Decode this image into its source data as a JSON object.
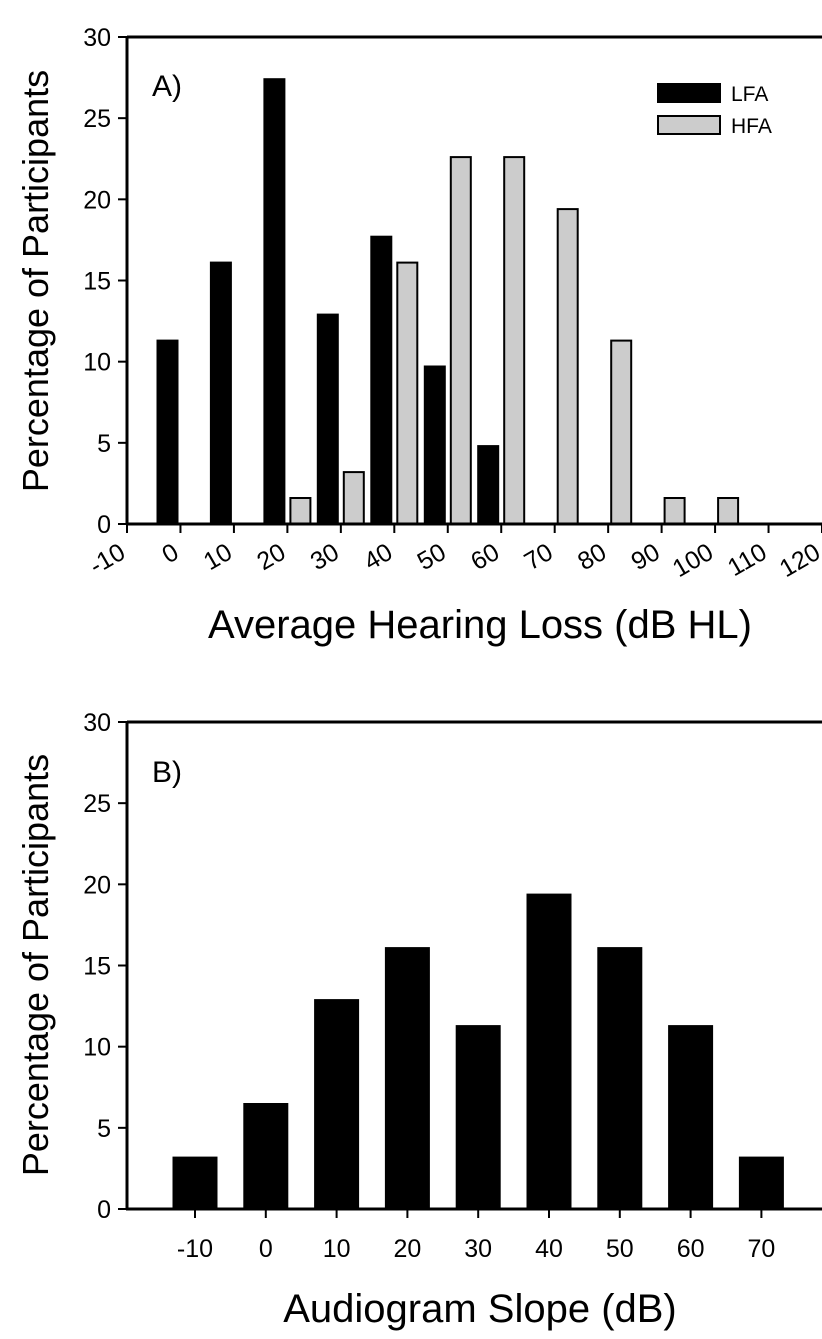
{
  "chart_data": [
    {
      "type": "bar",
      "panel_label": "A)",
      "xlabel": "Average Hearing Loss (dB HL)",
      "ylabel": "Percentage of Participants",
      "ylim": [
        0,
        30
      ],
      "yticks": [
        "0",
        "5",
        "10",
        "15",
        "20",
        "25",
        "30"
      ],
      "xlim": [
        -10,
        120
      ],
      "xticks": [
        "-10",
        "0",
        "10",
        "20",
        "30",
        "40",
        "50",
        "60",
        "70",
        "80",
        "90",
        "100",
        "110",
        "120"
      ],
      "x_tick_rotation": "angled",
      "bin_width": 10,
      "legend_position": "top-right",
      "grid": false,
      "series": [
        {
          "name": "LFA",
          "color": "#000000",
          "x": [
            0,
            10,
            20,
            30,
            40,
            50,
            60
          ],
          "values": [
            11.3,
            16.1,
            27.4,
            12.9,
            17.7,
            9.7,
            4.8
          ]
        },
        {
          "name": "HFA",
          "color": "#cccccc",
          "x": [
            20,
            30,
            40,
            50,
            60,
            70,
            80,
            90,
            100
          ],
          "values": [
            1.6,
            3.2,
            16.1,
            22.6,
            22.6,
            19.4,
            11.3,
            1.6,
            1.6
          ]
        }
      ]
    },
    {
      "type": "bar",
      "panel_label": "B)",
      "xlabel": "Audiogram Slope (dB)",
      "ylabel": "Percentage of Participants",
      "ylim": [
        0,
        30
      ],
      "yticks": [
        "0",
        "5",
        "10",
        "15",
        "20",
        "25",
        "30"
      ],
      "grid": false,
      "categories": [
        "-10",
        "0",
        "10",
        "20",
        "30",
        "40",
        "50",
        "60",
        "70"
      ],
      "series": [
        {
          "color": "#000000",
          "values": [
            3.2,
            6.5,
            12.9,
            16.1,
            11.3,
            19.4,
            16.1,
            11.3,
            3.2
          ]
        }
      ]
    }
  ]
}
